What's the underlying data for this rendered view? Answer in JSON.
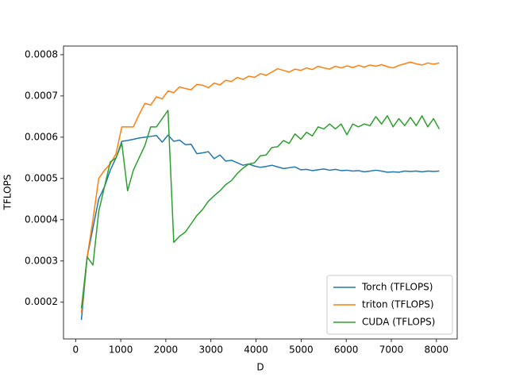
{
  "chart_data": {
    "type": "line",
    "xlabel": "D",
    "ylabel": "TFLOPS",
    "x": [
      128,
      256,
      384,
      512,
      640,
      768,
      896,
      1024,
      1152,
      1280,
      1408,
      1536,
      1664,
      1792,
      1920,
      2048,
      2176,
      2304,
      2432,
      2560,
      2688,
      2816,
      2944,
      3072,
      3200,
      3328,
      3456,
      3584,
      3712,
      3840,
      3968,
      4096,
      4224,
      4352,
      4480,
      4608,
      4736,
      4864,
      4992,
      5120,
      5248,
      5376,
      5504,
      5632,
      5760,
      5888,
      6016,
      6144,
      6272,
      6400,
      6528,
      6656,
      6784,
      6912,
      7040,
      7168,
      7296,
      7424,
      7552,
      7680,
      7808,
      7936,
      8064
    ],
    "series": [
      {
        "name": "Torch (TFLOPS)",
        "color": "#1f77b4",
        "values": [
          0.000157,
          0.00031,
          0.00038,
          0.00045,
          0.00048,
          0.00052,
          0.00055,
          0.00059,
          0.000592,
          0.000595,
          0.000598,
          0.0006,
          0.000602,
          0.000604,
          0.000588,
          0.000605,
          0.00059,
          0.000593,
          0.000582,
          0.000583,
          0.00056,
          0.000562,
          0.000565,
          0.000548,
          0.000557,
          0.000542,
          0.000544,
          0.000538,
          0.000532,
          0.000535,
          0.00053,
          0.000527,
          0.000529,
          0.000532,
          0.000528,
          0.000524,
          0.000526,
          0.000528,
          0.000521,
          0.000522,
          0.000519,
          0.000521,
          0.000523,
          0.00052,
          0.000522,
          0.000519,
          0.00052,
          0.000518,
          0.000519,
          0.000516,
          0.000518,
          0.00052,
          0.000518,
          0.000515,
          0.000516,
          0.000515,
          0.000518,
          0.000517,
          0.000518,
          0.000516,
          0.000518,
          0.000517,
          0.000518
        ]
      },
      {
        "name": "triton (TFLOPS)",
        "color": "#ff7f0e",
        "values": [
          0.000175,
          0.00031,
          0.0004,
          0.0005,
          0.00052,
          0.000535,
          0.00056,
          0.000625,
          0.000625,
          0.000625,
          0.000655,
          0.000682,
          0.000678,
          0.000698,
          0.000693,
          0.000712,
          0.000708,
          0.000722,
          0.000718,
          0.000715,
          0.000728,
          0.000726,
          0.00072,
          0.000731,
          0.000727,
          0.000738,
          0.000735,
          0.000745,
          0.00074,
          0.000748,
          0.000745,
          0.000754,
          0.00075,
          0.000758,
          0.000766,
          0.000762,
          0.000758,
          0.000765,
          0.000762,
          0.000768,
          0.000764,
          0.000772,
          0.000768,
          0.000765,
          0.000772,
          0.000768,
          0.000773,
          0.000769,
          0.000774,
          0.00077,
          0.000775,
          0.000772,
          0.000776,
          0.000771,
          0.000768,
          0.000774,
          0.000778,
          0.000782,
          0.000778,
          0.000775,
          0.00078,
          0.000777,
          0.00078
        ]
      },
      {
        "name": "CUDA (TFLOPS)",
        "color": "#2ca02c",
        "values": [
          0.000185,
          0.00031,
          0.00029,
          0.00042,
          0.00048,
          0.00054,
          0.00055,
          0.000585,
          0.00047,
          0.00052,
          0.00055,
          0.00058,
          0.000625,
          0.000625,
          0.000645,
          0.000665,
          0.000345,
          0.00036,
          0.00037,
          0.00039,
          0.00041,
          0.000425,
          0.000445,
          0.000458,
          0.00047,
          0.000485,
          0.000495,
          0.000512,
          0.000525,
          0.000535,
          0.000538,
          0.000555,
          0.000557,
          0.000575,
          0.000577,
          0.000592,
          0.000585,
          0.000608,
          0.000595,
          0.000612,
          0.000603,
          0.000625,
          0.00062,
          0.000632,
          0.00062,
          0.000632,
          0.000606,
          0.000632,
          0.000625,
          0.000632,
          0.000628,
          0.00065,
          0.000632,
          0.000652,
          0.000625,
          0.000645,
          0.000628,
          0.000648,
          0.000628,
          0.000652,
          0.000625,
          0.000645,
          0.00062
        ]
      }
    ],
    "xlim": [
      -269,
      8461
    ],
    "ylim": [
      0.000111,
      0.000821
    ],
    "xticks": [
      0,
      1000,
      2000,
      3000,
      4000,
      5000,
      6000,
      7000,
      8000
    ],
    "yticks": [
      0.0002,
      0.0003,
      0.0004,
      0.0005,
      0.0006,
      0.0007,
      0.0008
    ],
    "grid": false,
    "legend": "lower right"
  }
}
